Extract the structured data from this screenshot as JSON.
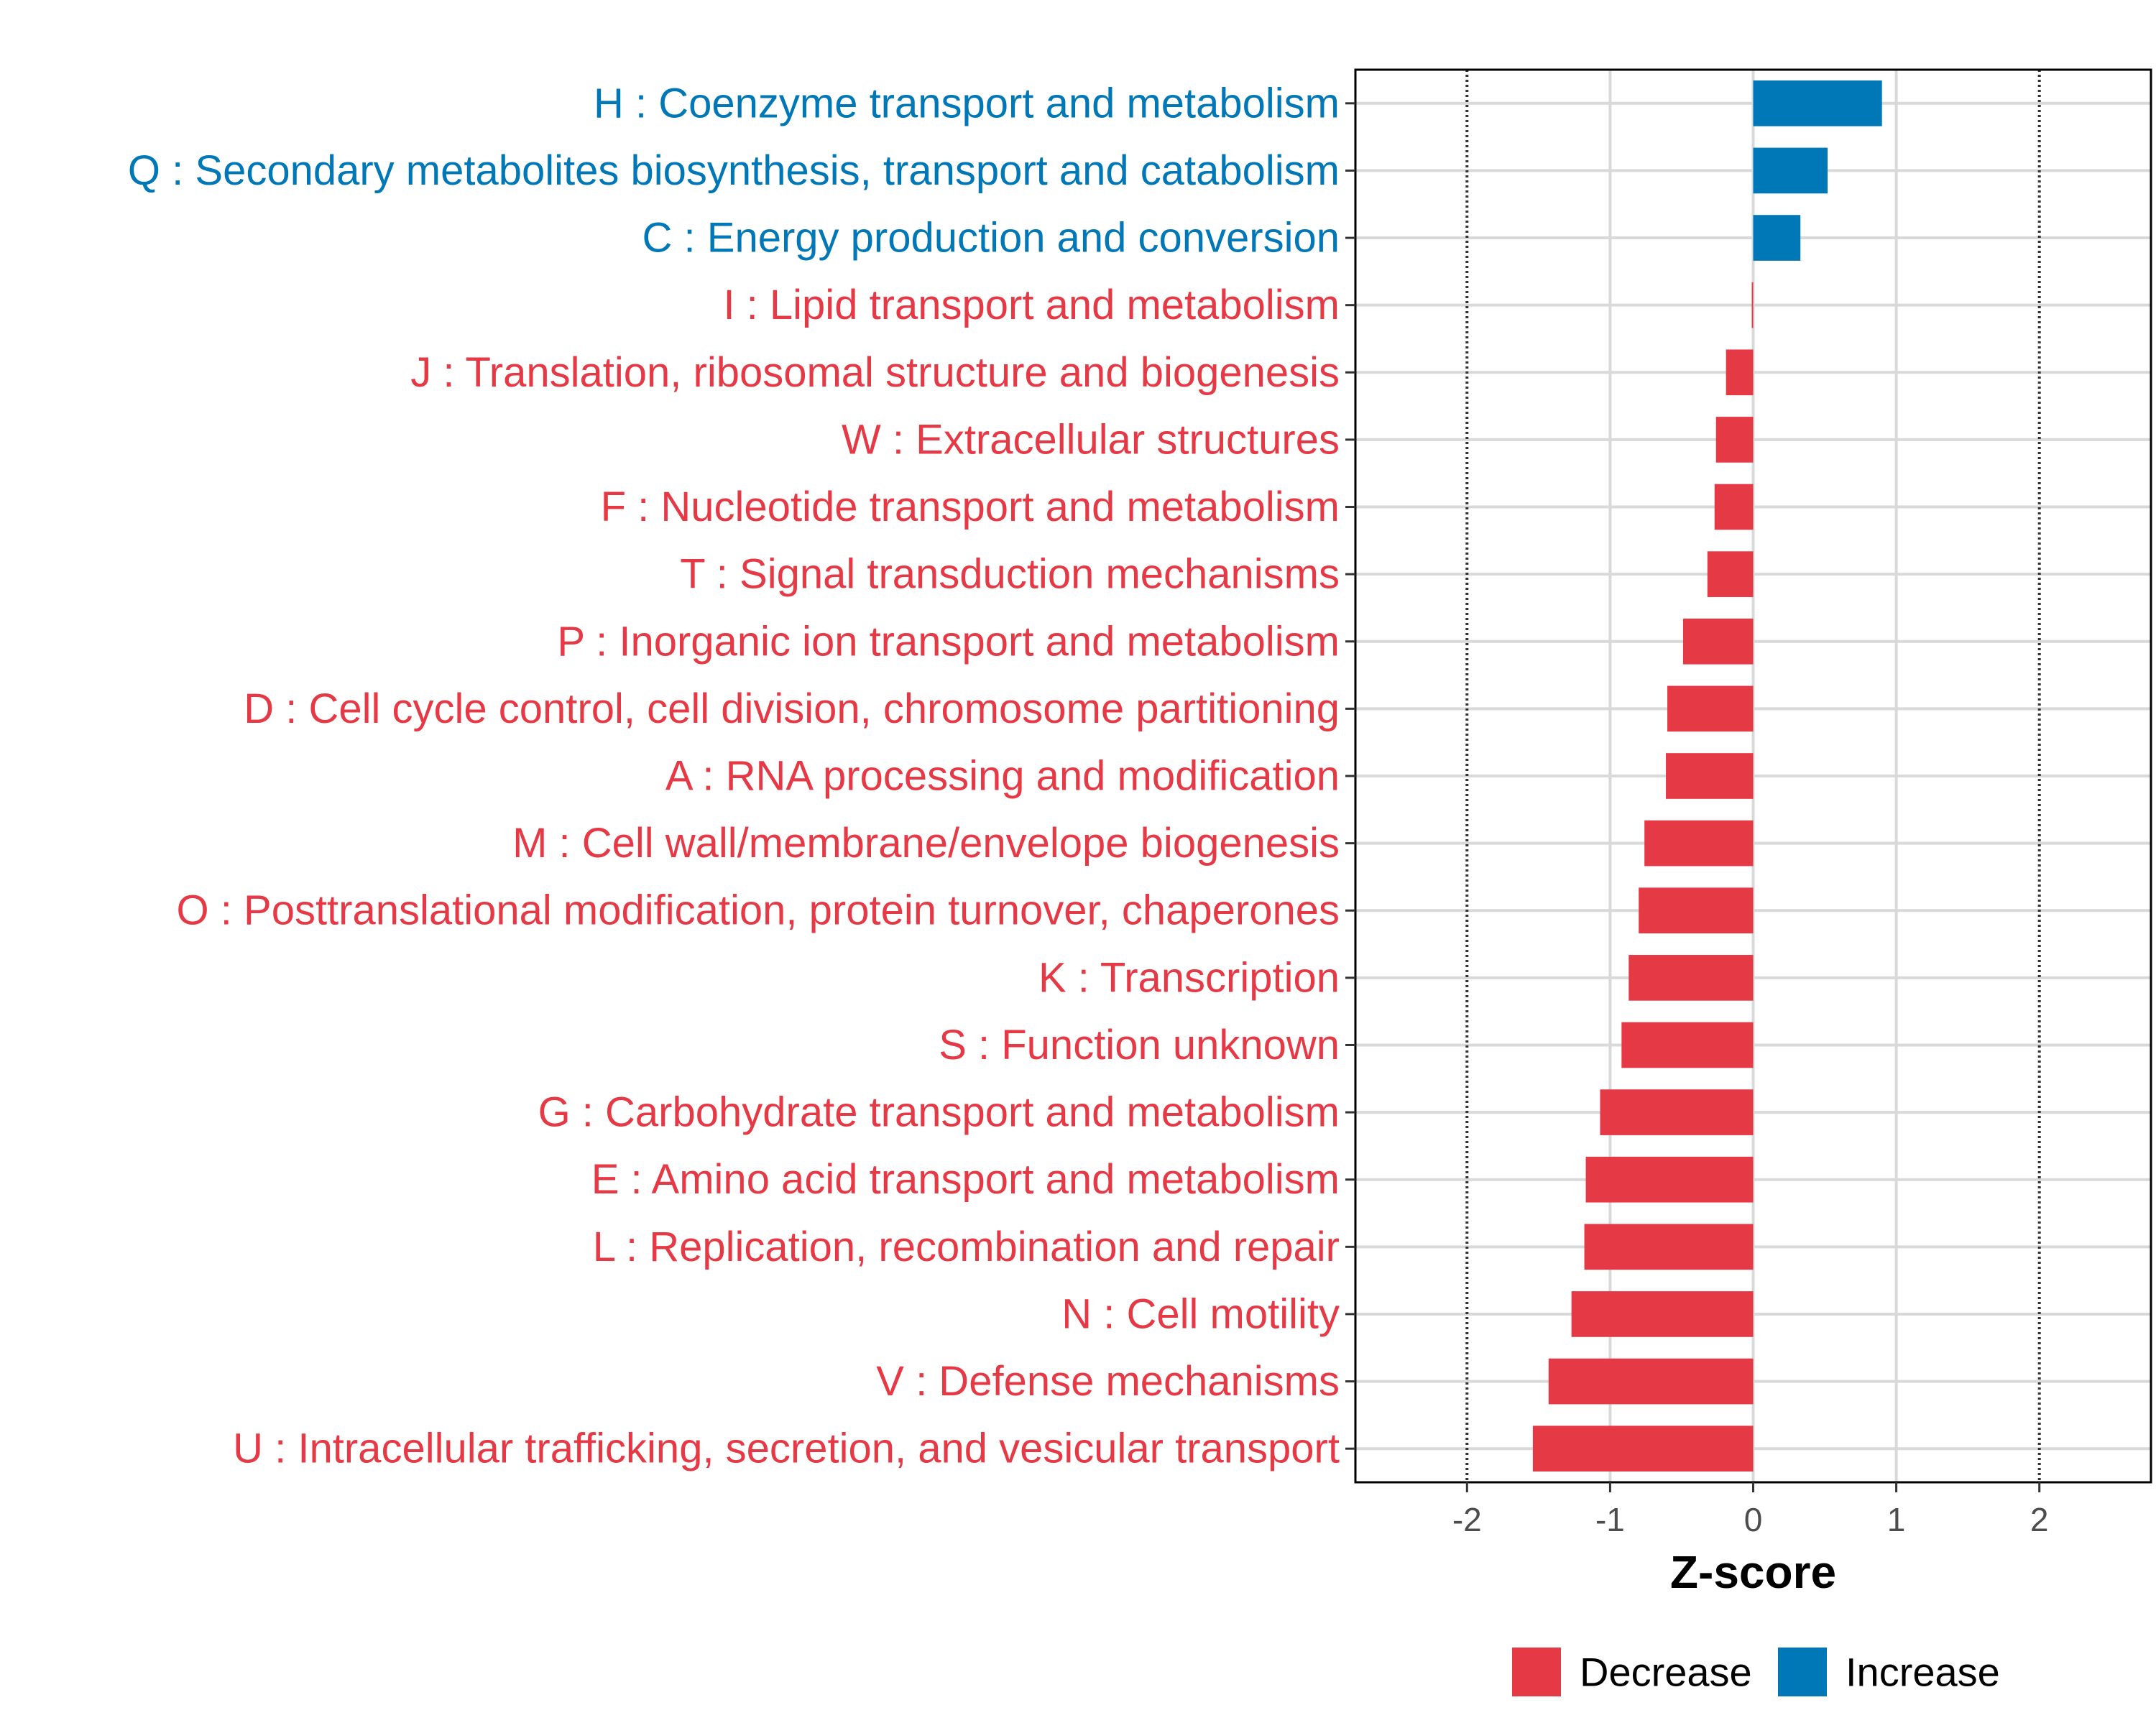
{
  "chart_data": {
    "type": "bar",
    "orientation": "horizontal",
    "xlabel": "Z-score",
    "ylabel": "",
    "xlim": [
      -2.78,
      2.78
    ],
    "x_ticks": [
      -2,
      -1,
      0,
      1,
      2
    ],
    "x_tick_labels": [
      "-2",
      "-1",
      "0",
      "1",
      "2"
    ],
    "reference_lines": [
      -2,
      2
    ],
    "grid": true,
    "legend_position": "bottom",
    "legend": [
      {
        "name": "Decrease",
        "color": "#E63946"
      },
      {
        "name": "Increase",
        "color": "#0077B6"
      }
    ],
    "categories": [
      {
        "label": "H : Coenzyme transport and metabolism",
        "value": 0.9,
        "direction": "Increase"
      },
      {
        "label": "Q : Secondary metabolites biosynthesis, transport and catabolism",
        "value": 0.52,
        "direction": "Increase"
      },
      {
        "label": "C : Energy production and conversion",
        "value": 0.33,
        "direction": "Increase"
      },
      {
        "label": "I : Lipid transport and metabolism",
        "value": -0.01,
        "direction": "Decrease"
      },
      {
        "label": "J : Translation, ribosomal structure and biogenesis",
        "value": -0.19,
        "direction": "Decrease"
      },
      {
        "label": "W : Extracellular structures",
        "value": -0.26,
        "direction": "Decrease"
      },
      {
        "label": "F : Nucleotide transport and metabolism",
        "value": -0.27,
        "direction": "Decrease"
      },
      {
        "label": "T : Signal transduction mechanisms",
        "value": -0.32,
        "direction": "Decrease"
      },
      {
        "label": "P : Inorganic ion transport and metabolism",
        "value": -0.49,
        "direction": "Decrease"
      },
      {
        "label": "D : Cell cycle control, cell division, chromosome partitioning",
        "value": -0.6,
        "direction": "Decrease"
      },
      {
        "label": "A : RNA processing and modification",
        "value": -0.61,
        "direction": "Decrease"
      },
      {
        "label": "M : Cell wall/membrane/envelope biogenesis",
        "value": -0.76,
        "direction": "Decrease"
      },
      {
        "label": "O : Posttranslational modification, protein turnover, chaperones",
        "value": -0.8,
        "direction": "Decrease"
      },
      {
        "label": "K : Transcription",
        "value": -0.87,
        "direction": "Decrease"
      },
      {
        "label": "S : Function unknown",
        "value": -0.92,
        "direction": "Decrease"
      },
      {
        "label": "G : Carbohydrate transport and metabolism",
        "value": -1.07,
        "direction": "Decrease"
      },
      {
        "label": "E : Amino acid transport and metabolism",
        "value": -1.17,
        "direction": "Decrease"
      },
      {
        "label": "L : Replication, recombination and repair",
        "value": -1.18,
        "direction": "Decrease"
      },
      {
        "label": "N : Cell motility",
        "value": -1.27,
        "direction": "Decrease"
      },
      {
        "label": "V : Defense mechanisms",
        "value": -1.43,
        "direction": "Decrease"
      },
      {
        "label": "U : Intracellular trafficking, secretion, and vesicular transport",
        "value": -1.54,
        "direction": "Decrease"
      }
    ]
  }
}
